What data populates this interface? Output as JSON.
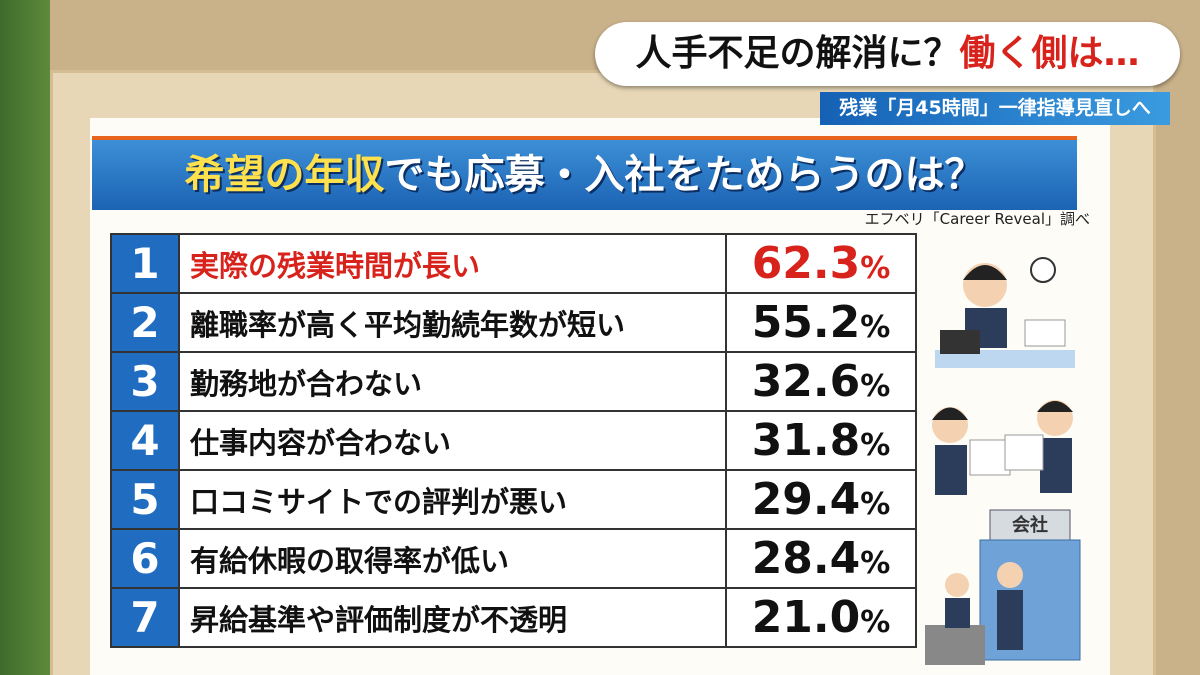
{
  "caption": {
    "lead": "人手不足の解消に？",
    "accent": "働く側は…"
  },
  "subcaption": "残業「月45時間」一律指導見直しへ",
  "title": {
    "highlight": "希望の年収",
    "rest": "でも応募・入社をためらうのは？"
  },
  "source": "エフベリ「Career Reveal」調べ",
  "table": {
    "rows": [
      {
        "rank": "1",
        "reason": "実際の残業時間が長い",
        "value": "62.3",
        "unit": "%",
        "highlight": true
      },
      {
        "rank": "2",
        "reason": "離職率が高く平均勤続年数が短い",
        "value": "55.2",
        "unit": "%",
        "highlight": false
      },
      {
        "rank": "3",
        "reason": "勤務地が合わない",
        "value": "32.6",
        "unit": "%",
        "highlight": false
      },
      {
        "rank": "4",
        "reason": "仕事内容が合わない",
        "value": "31.8",
        "unit": "%",
        "highlight": false
      },
      {
        "rank": "5",
        "reason": "口コミサイトでの評判が悪い",
        "value": "29.4",
        "unit": "%",
        "highlight": false
      },
      {
        "rank": "6",
        "reason": "有給休暇の取得率が低い",
        "value": "28.4",
        "unit": "%",
        "highlight": false
      },
      {
        "rank": "7",
        "reason": "昇給基準や評価制度が不透明",
        "value": "21.0",
        "unit": "%",
        "highlight": false
      }
    ]
  },
  "building_sign": "会社"
}
